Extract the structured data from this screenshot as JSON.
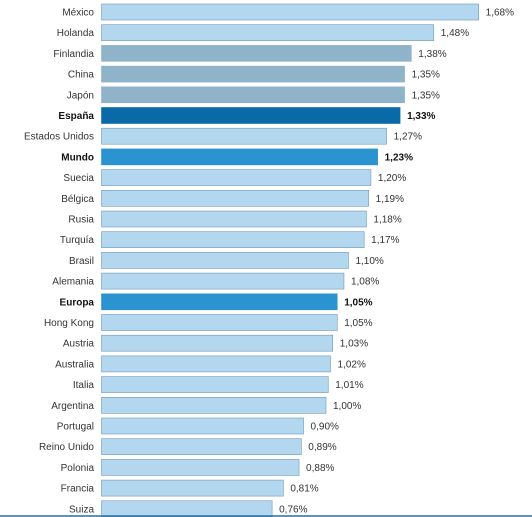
{
  "chart_data": {
    "type": "bar",
    "orientation": "horizontal",
    "title": "",
    "xlabel": "",
    "ylabel": "",
    "xlim": [
      0,
      1.7
    ],
    "grid": false,
    "legend": "none",
    "categories": [
      "México",
      "Holanda",
      "Finlandia",
      "China",
      "Japón",
      "España",
      "Estados Unidos",
      "Mundo",
      "Suecia",
      "Bélgica",
      "Rusia",
      "Turquía",
      "Brasil",
      "Alemania",
      "Europa",
      "Hong Kong",
      "Austria",
      "Australia",
      "Italia",
      "Argentina",
      "Portugal",
      "Reino Unido",
      "Polonia",
      "Francia",
      "Suiza"
    ],
    "values": [
      1.68,
      1.48,
      1.38,
      1.35,
      1.35,
      1.33,
      1.27,
      1.23,
      1.2,
      1.19,
      1.18,
      1.17,
      1.1,
      1.08,
      1.05,
      1.05,
      1.03,
      1.02,
      1.01,
      1.0,
      0.9,
      0.89,
      0.88,
      0.81,
      0.76
    ],
    "value_labels": [
      "1,68%",
      "1,48%",
      "1,38%",
      "1,35%",
      "1,35%",
      "1,33%",
      "1,27%",
      "1,23%",
      "1,20%",
      "1,19%",
      "1,18%",
      "1,17%",
      "1,10%",
      "1,08%",
      "1,05%",
      "1,05%",
      "1,03%",
      "1,02%",
      "1,01%",
      "1,00%",
      "0,90%",
      "0,89%",
      "0,88%",
      "0,81%",
      "0,76%"
    ],
    "styles": [
      "light",
      "light",
      "gray",
      "gray",
      "gray",
      "dark",
      "light",
      "medium",
      "light",
      "light",
      "light",
      "light",
      "light",
      "light",
      "medium",
      "light",
      "light",
      "light",
      "light",
      "light",
      "light",
      "light",
      "light",
      "light",
      "light"
    ],
    "bold": [
      false,
      false,
      false,
      false,
      false,
      true,
      false,
      true,
      false,
      false,
      false,
      false,
      false,
      false,
      true,
      false,
      false,
      false,
      false,
      false,
      false,
      false,
      false,
      false,
      false
    ],
    "colors": {
      "light": "#b3d7ef",
      "gray": "#8fb3c9",
      "dark": "#0a6aa8",
      "medium": "#2b93d0",
      "stroke": "#6f9ab5",
      "axis": "#2a6fa0"
    }
  }
}
